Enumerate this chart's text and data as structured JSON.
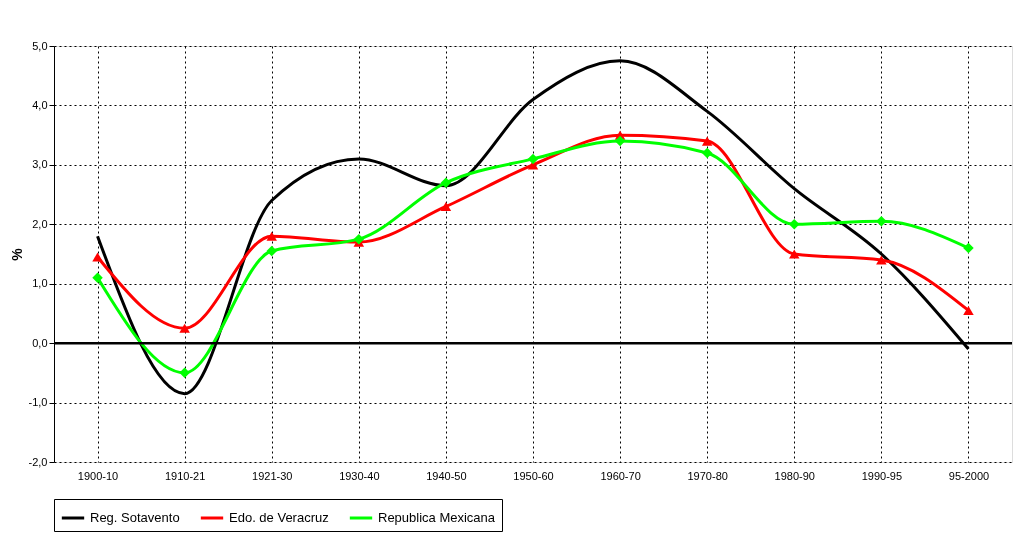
{
  "chart_data": {
    "type": "line",
    "ylabel": "%",
    "categories": [
      "1900-10",
      "1910-21",
      "1921-30",
      "1930-40",
      "1940-50",
      "1950-60",
      "1960-70",
      "1970-80",
      "1980-90",
      "1990-95",
      "95-2000"
    ],
    "series": [
      {
        "name": "Reg. Sotavento",
        "color": "#000000",
        "marker": "none",
        "values": [
          1.8,
          -0.85,
          2.4,
          3.1,
          2.65,
          4.1,
          4.75,
          3.9,
          2.6,
          1.5,
          -0.1
        ]
      },
      {
        "name": "Edo. de Veracruz",
        "color": "#ff0000",
        "marker": "triangle",
        "values": [
          1.45,
          0.25,
          1.8,
          1.7,
          2.3,
          3.0,
          3.5,
          3.4,
          1.5,
          1.4,
          0.55
        ]
      },
      {
        "name": "Republica Mexicana",
        "color": "#00ff00",
        "marker": "diamond",
        "values": [
          1.1,
          -0.5,
          1.55,
          1.75,
          2.7,
          3.1,
          3.4,
          3.2,
          2.0,
          2.05,
          1.6
        ]
      }
    ],
    "ylim": [
      -2,
      5
    ],
    "yticks": [
      {
        "value": -2,
        "label": "-2,0"
      },
      {
        "value": -1,
        "label": "-1,0"
      },
      {
        "value": 0,
        "label": "0,0"
      },
      {
        "value": 1,
        "label": "1,0"
      },
      {
        "value": 2,
        "label": "2,0"
      },
      {
        "value": 3,
        "label": "3,0"
      },
      {
        "value": 4,
        "label": "4,0"
      },
      {
        "value": 5,
        "label": "5,0"
      }
    ],
    "ref_lines": [
      {
        "axis": "y",
        "value": 0,
        "color": "#000000"
      }
    ],
    "grid": true,
    "legend": "bottom",
    "line_style": "solid"
  }
}
